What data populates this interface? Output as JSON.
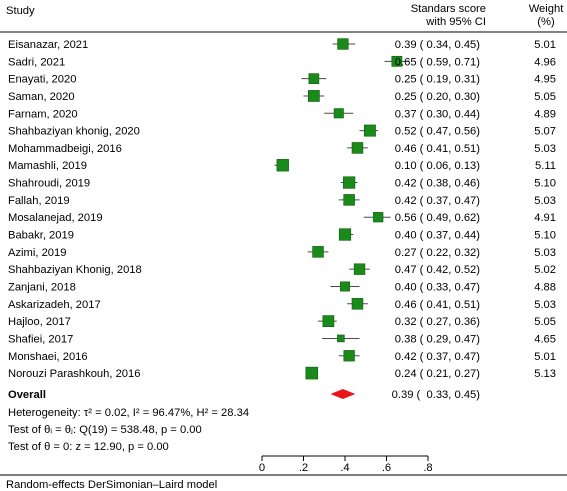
{
  "chart_data": {
    "type": "forest",
    "header": {
      "study_label": "Study",
      "effect_label_line1": "Standars score",
      "effect_label_line2": "with 95% CI",
      "weight_label_line1": "Weight",
      "weight_label_line2": "(%)"
    },
    "studies": [
      {
        "name": "Eisanazar, 2021",
        "es": 0.39,
        "lo": 0.34,
        "hi": 0.45,
        "ci_text": "0.39 (  0.34, 0.45)",
        "weight": "5.01"
      },
      {
        "name": "Sadri, 2021",
        "es": 0.65,
        "lo": 0.59,
        "hi": 0.71,
        "ci_text": "0.65 (  0.59, 0.71)",
        "weight": "4.96"
      },
      {
        "name": "Enayati, 2020",
        "es": 0.25,
        "lo": 0.19,
        "hi": 0.31,
        "ci_text": "0.25 (  0.19, 0.31)",
        "weight": "4.95"
      },
      {
        "name": "Saman, 2020",
        "es": 0.25,
        "lo": 0.2,
        "hi": 0.3,
        "ci_text": "0.25 (  0.20, 0.30)",
        "weight": "5.05"
      },
      {
        "name": "Farnam, 2020",
        "es": 0.37,
        "lo": 0.3,
        "hi": 0.44,
        "ci_text": "0.37 (  0.30, 0.44)",
        "weight": "4.89"
      },
      {
        "name": "Shahbaziyan khonig, 2020",
        "es": 0.52,
        "lo": 0.47,
        "hi": 0.56,
        "ci_text": "0.52 (  0.47, 0.56)",
        "weight": "5.07"
      },
      {
        "name": "Mohammadbeigi, 2016",
        "es": 0.46,
        "lo": 0.41,
        "hi": 0.51,
        "ci_text": "0.46 (  0.41, 0.51)",
        "weight": "5.03"
      },
      {
        "name": "Mamashli, 2019",
        "es": 0.1,
        "lo": 0.06,
        "hi": 0.13,
        "ci_text": "0.10 (  0.06, 0.13)",
        "weight": "5.11"
      },
      {
        "name": "Shahroudi, 2019",
        "es": 0.42,
        "lo": 0.38,
        "hi": 0.46,
        "ci_text": "0.42 (  0.38, 0.46)",
        "weight": "5.10"
      },
      {
        "name": "Fallah, 2019",
        "es": 0.42,
        "lo": 0.37,
        "hi": 0.47,
        "ci_text": "0.42 (  0.37, 0.47)",
        "weight": "5.03"
      },
      {
        "name": "Mosalanejad, 2019",
        "es": 0.56,
        "lo": 0.49,
        "hi": 0.62,
        "ci_text": "0.56 (  0.49, 0.62)",
        "weight": "4.91"
      },
      {
        "name": "Babakr, 2019",
        "es": 0.4,
        "lo": 0.37,
        "hi": 0.44,
        "ci_text": "0.40 (  0.37, 0.44)",
        "weight": "5.10"
      },
      {
        "name": "Azimi, 2019",
        "es": 0.27,
        "lo": 0.22,
        "hi": 0.32,
        "ci_text": "0.27 (  0.22, 0.32)",
        "weight": "5.03"
      },
      {
        "name": "Shahbaziyan Khonig, 2018",
        "es": 0.47,
        "lo": 0.42,
        "hi": 0.52,
        "ci_text": "0.47 (  0.42, 0.52)",
        "weight": "5.02"
      },
      {
        "name": "Zanjani, 2018",
        "es": 0.4,
        "lo": 0.33,
        "hi": 0.47,
        "ci_text": "0.40 (  0.33, 0.47)",
        "weight": "4.88"
      },
      {
        "name": "Askarizadeh, 2017",
        "es": 0.46,
        "lo": 0.41,
        "hi": 0.51,
        "ci_text": "0.46 (  0.41, 0.51)",
        "weight": "5.03"
      },
      {
        "name": "Hajloo, 2017",
        "es": 0.32,
        "lo": 0.27,
        "hi": 0.36,
        "ci_text": "0.32 (  0.27, 0.36)",
        "weight": "5.05"
      },
      {
        "name": "Shafiei, 2017",
        "es": 0.38,
        "lo": 0.29,
        "hi": 0.47,
        "ci_text": "0.38 (  0.29, 0.47)",
        "weight": "4.65"
      },
      {
        "name": "Monshaei, 2016",
        "es": 0.42,
        "lo": 0.37,
        "hi": 0.47,
        "ci_text": "0.42 (  0.37, 0.47)",
        "weight": "5.01"
      },
      {
        "name": "Norouzi Parashkouh, 2016",
        "es": 0.24,
        "lo": 0.21,
        "hi": 0.27,
        "ci_text": "0.24 (  0.21, 0.27)",
        "weight": "5.13"
      }
    ],
    "overall": {
      "name": "Overall",
      "es": 0.39,
      "lo": 0.33,
      "hi": 0.45,
      "ci_text": "0.39 (  0.33, 0.45)"
    },
    "stats": {
      "heterogeneity": "Heterogeneity: τ² = 0.02, I² = 96.47%, H² = 28.34",
      "test_theta_eq": "Test of θᵢ = θⱼ: Q(19) = 538.48, p = 0.00",
      "test_theta_zero": "Test of θ = 0: z = 12.90, p = 0.00"
    },
    "x_axis": {
      "ticks": [
        0,
        0.2,
        0.4,
        0.6,
        0.8
      ],
      "tick_labels": [
        "0",
        ".2",
        ".4",
        ".6",
        ".8"
      ],
      "range": [
        0,
        0.8
      ]
    },
    "footer": "Random-effects DerSimonian–Laird model",
    "colors": {
      "marker": "#1a8a1a",
      "marker_edge": "#0d5c0d",
      "diamond": "#e8161b",
      "ci_line": "#4a4a4a"
    }
  }
}
